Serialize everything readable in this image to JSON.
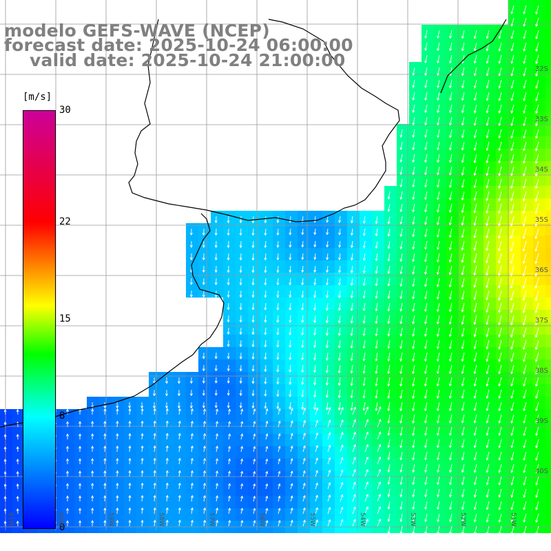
{
  "title": {
    "line1": "modelo GEFS-WAVE (NCEP)",
    "line2": "forecast date: 2025-10-24 06:00:00",
    "line3": "valid date: 2025-10-24 21:00:00"
  },
  "colorbar": {
    "unit": "[m/s]",
    "ticks": [
      {
        "label": "30",
        "value": 30
      },
      {
        "label": "22",
        "value": 22
      },
      {
        "label": "15",
        "value": 15
      },
      {
        "label": "8",
        "value": 8
      },
      {
        "label": "0",
        "value": 0
      }
    ],
    "min": 0,
    "max": 30,
    "colors": [
      "#0000ff",
      "#00ffff",
      "#00ff00",
      "#ffff00",
      "#ff0000",
      "#cc0099"
    ]
  },
  "lon_labels": [
    "61W",
    "60W",
    "59W",
    "58W",
    "57W",
    "56W",
    "55W",
    "54W",
    "53W",
    "52W",
    "51W"
  ],
  "lat_labels": [
    "32S",
    "33S",
    "34S",
    "35S",
    "36S",
    "37S",
    "38S",
    "39S",
    "40S"
  ]
}
